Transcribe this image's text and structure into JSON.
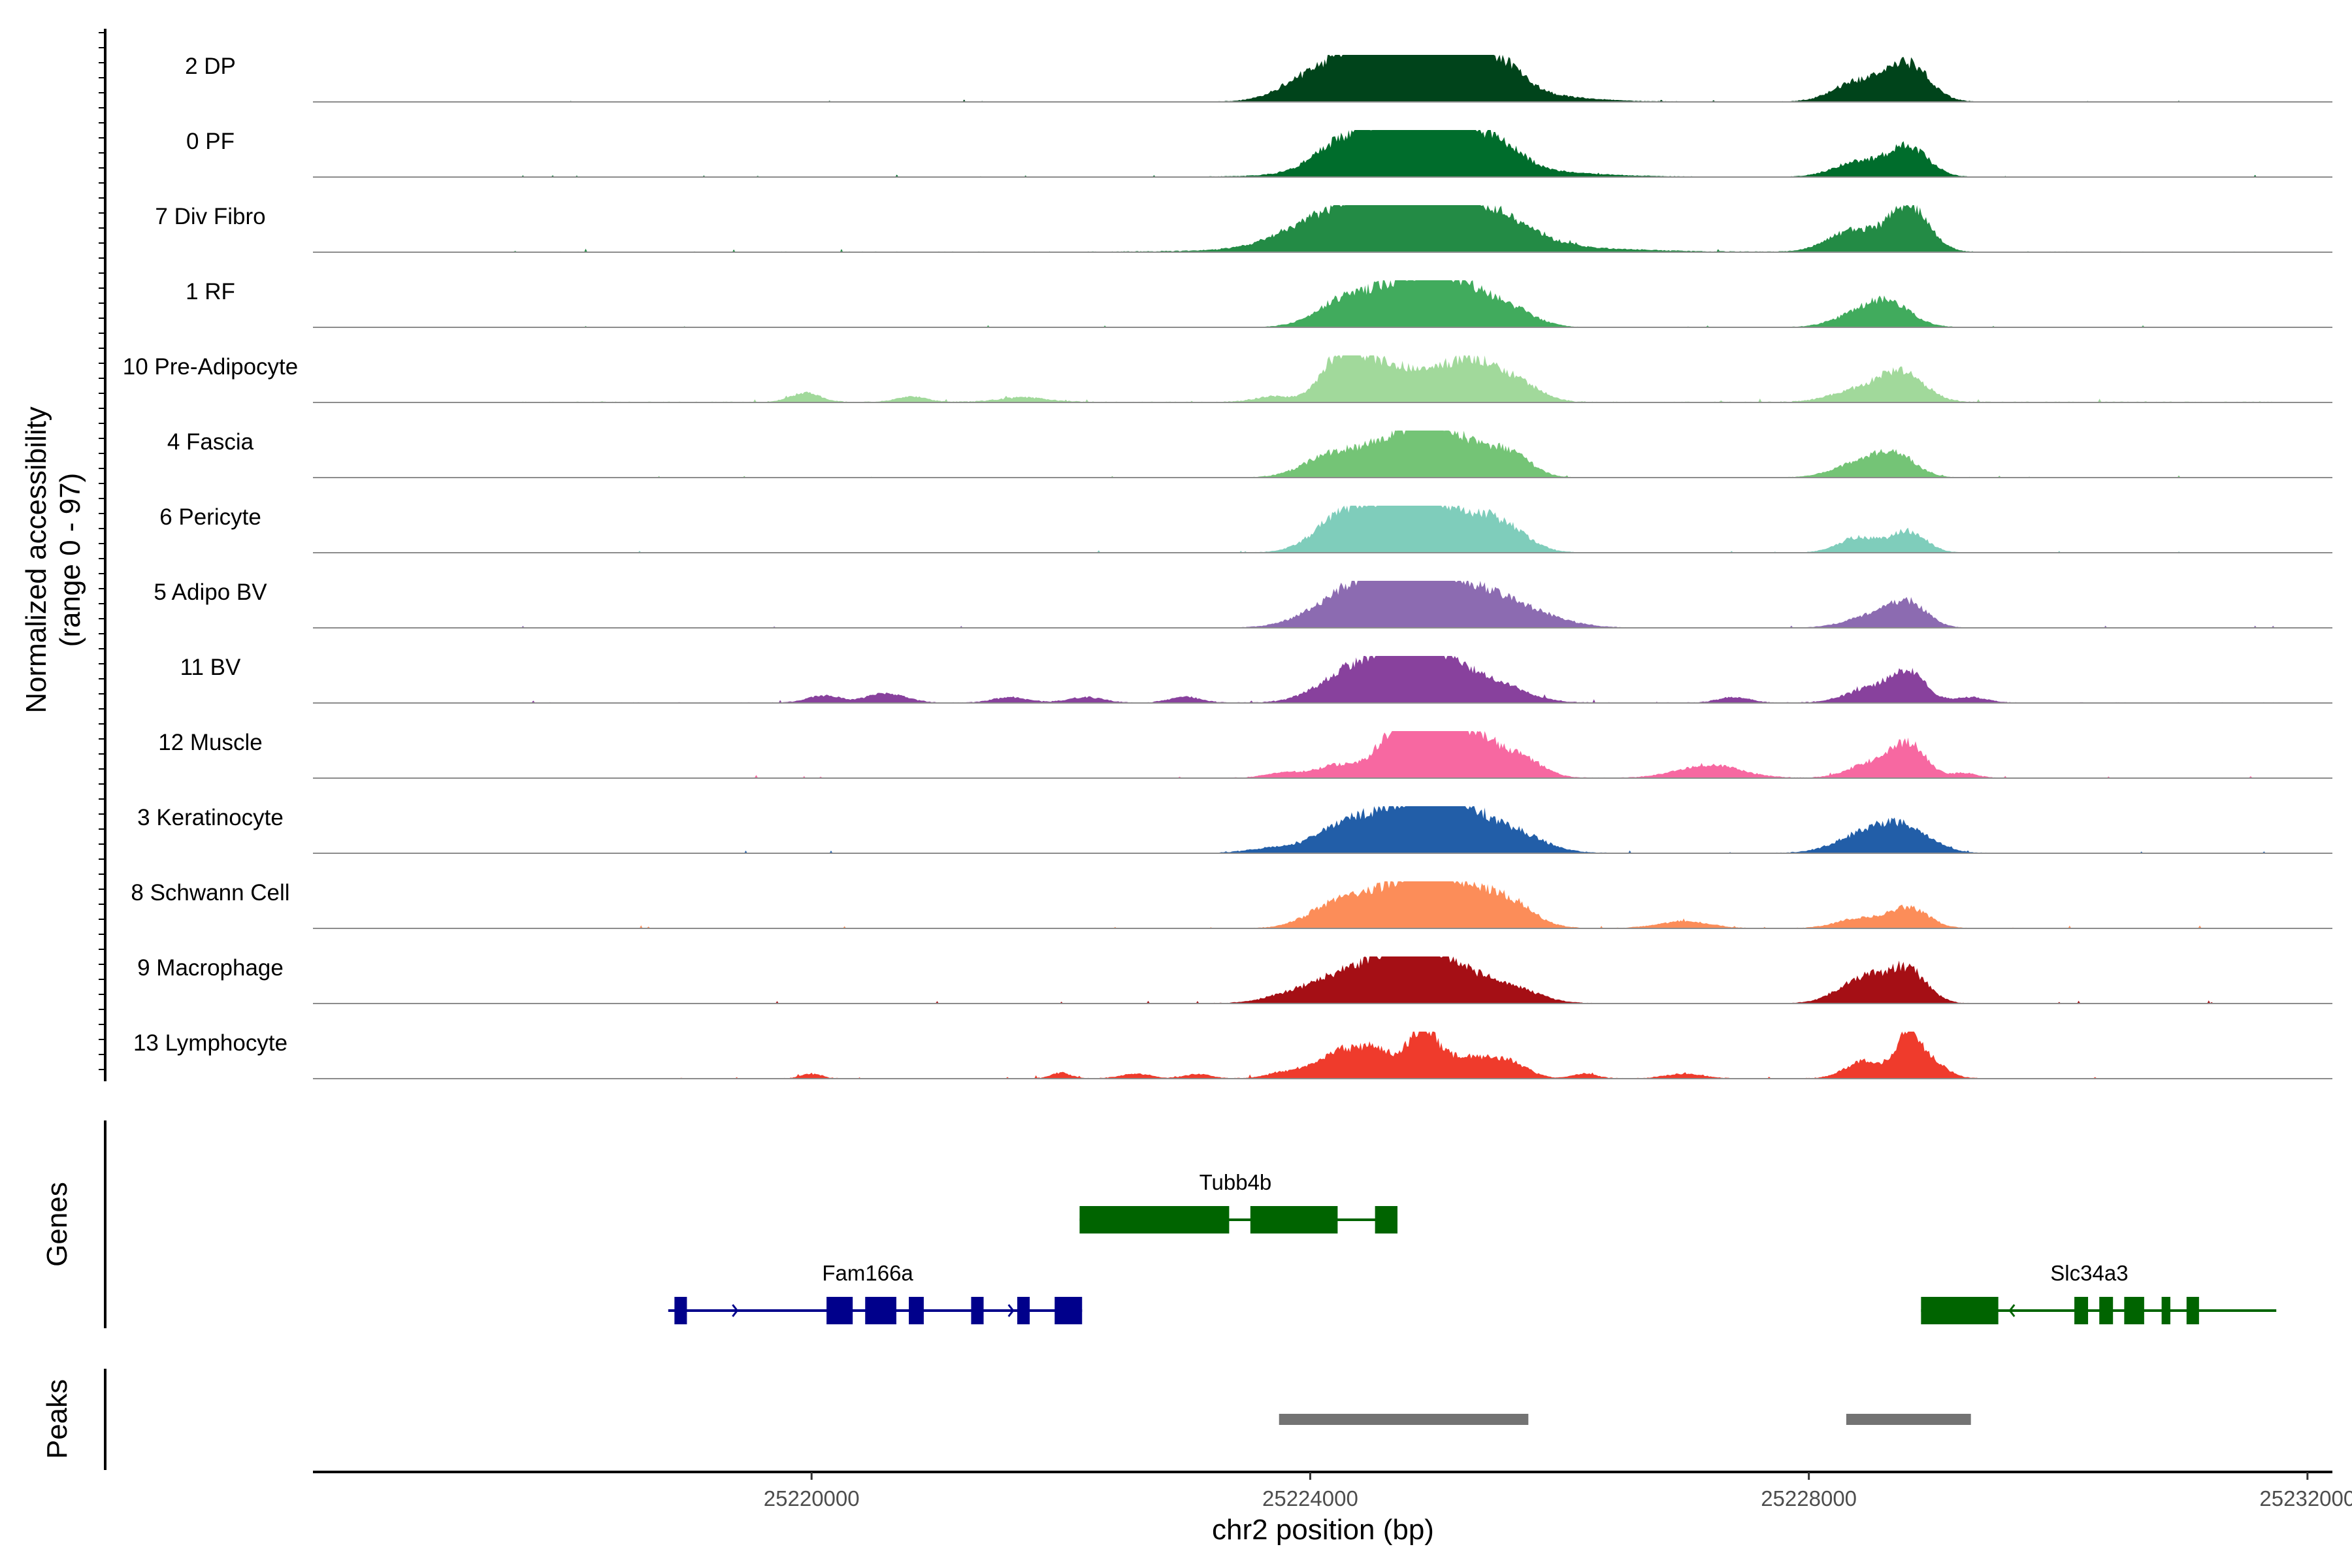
{
  "chart_data": {
    "type": "area",
    "ylabel": "Normalized accessibility",
    "ylabel_range": "(range 0 - 97)",
    "ylim": [
      0,
      97
    ],
    "xlabel": "chr2 position (bp)",
    "xlim": [
      25216000,
      25232200
    ],
    "x_ticks": [
      25220000,
      25224000,
      25228000,
      25232000
    ],
    "x_tick_labels": [
      "25220000",
      "25224000",
      "25228000",
      "25232000"
    ],
    "tracks": [
      {
        "name": "2 DP",
        "color": "#00441b",
        "noise": 1.0,
        "bumps": [
          [
            25223950,
            220,
            0.38
          ],
          [
            25224300,
            200,
            0.48
          ],
          [
            25224650,
            300,
            0.85
          ],
          [
            25225000,
            250,
            0.98
          ],
          [
            25225500,
            200,
            0.55
          ],
          [
            25225150,
            600,
            0.35
          ],
          [
            25228400,
            200,
            0.42
          ],
          [
            25228800,
            170,
            0.78
          ]
        ]
      },
      {
        "name": "0 PF",
        "color": "#006d2c",
        "noise": 0.9,
        "bumps": [
          [
            25224250,
            230,
            0.52
          ],
          [
            25224750,
            300,
            0.85
          ],
          [
            25225100,
            230,
            0.82
          ],
          [
            25225550,
            170,
            0.4
          ],
          [
            25225100,
            700,
            0.28
          ],
          [
            25228400,
            200,
            0.32
          ],
          [
            25228800,
            160,
            0.62
          ]
        ]
      },
      {
        "name": "7 Div Fibro",
        "color": "#238b45",
        "noise": 1.3,
        "bumps": [
          [
            25224000,
            300,
            0.35
          ],
          [
            25224500,
            350,
            0.68
          ],
          [
            25224800,
            250,
            0.95
          ],
          [
            25225150,
            300,
            0.72
          ],
          [
            25225600,
            250,
            0.32
          ],
          [
            25225000,
            900,
            0.25
          ],
          [
            25228350,
            200,
            0.45
          ],
          [
            25228800,
            160,
            0.98
          ]
        ]
      },
      {
        "name": "1 RF",
        "color": "#41ab5d",
        "noise": 0.8,
        "bumps": [
          [
            25224250,
            220,
            0.45
          ],
          [
            25224750,
            300,
            0.82
          ],
          [
            25225150,
            250,
            0.75
          ],
          [
            25225600,
            200,
            0.35
          ],
          [
            25228400,
            200,
            0.25
          ],
          [
            25228650,
            180,
            0.45
          ]
        ]
      },
      {
        "name": "10 Pre-Adipocyte",
        "color": "#a1d99b",
        "noise": 1.6,
        "bumps": [
          [
            25219950,
            120,
            0.2
          ],
          [
            25220800,
            120,
            0.12
          ],
          [
            25221700,
            200,
            0.1
          ],
          [
            25223700,
            150,
            0.12
          ],
          [
            25224250,
            160,
            1.0
          ],
          [
            25224550,
            150,
            0.55
          ],
          [
            25224950,
            250,
            0.72
          ],
          [
            25225300,
            150,
            0.5
          ],
          [
            25225600,
            200,
            0.52
          ],
          [
            25228400,
            220,
            0.25
          ],
          [
            25228750,
            180,
            0.6
          ]
        ]
      },
      {
        "name": "4 Fascia",
        "color": "#74c476",
        "noise": 0.8,
        "bumps": [
          [
            25224150,
            220,
            0.38
          ],
          [
            25224700,
            300,
            0.75
          ],
          [
            25225100,
            250,
            0.8
          ],
          [
            25225600,
            170,
            0.48
          ],
          [
            25228400,
            200,
            0.3
          ],
          [
            25228700,
            160,
            0.45
          ]
        ]
      },
      {
        "name": "6 Pericyte",
        "color": "#7fcdbb",
        "noise": 0.9,
        "bumps": [
          [
            25224250,
            220,
            0.68
          ],
          [
            25224650,
            250,
            0.82
          ],
          [
            25225100,
            280,
            0.85
          ],
          [
            25225550,
            200,
            0.45
          ],
          [
            25228400,
            160,
            0.32
          ],
          [
            25228800,
            140,
            0.45
          ]
        ]
      },
      {
        "name": "5 Adipo BV",
        "color": "#8c6bb1",
        "noise": 0.8,
        "bumps": [
          [
            25224300,
            300,
            0.55
          ],
          [
            25224800,
            350,
            0.95
          ],
          [
            25225250,
            400,
            0.55
          ],
          [
            25225700,
            300,
            0.2
          ],
          [
            25228500,
            200,
            0.25
          ],
          [
            25228800,
            150,
            0.5
          ]
        ]
      },
      {
        "name": "11 BV",
        "color": "#88419d",
        "noise": 1.3,
        "bumps": [
          [
            25220100,
            130,
            0.15
          ],
          [
            25220600,
            160,
            0.2
          ],
          [
            25221600,
            140,
            0.12
          ],
          [
            25222200,
            140,
            0.12
          ],
          [
            25223000,
            130,
            0.12
          ],
          [
            25224300,
            250,
            0.55
          ],
          [
            25224700,
            250,
            0.8
          ],
          [
            25225050,
            250,
            0.75
          ],
          [
            25225500,
            250,
            0.32
          ],
          [
            25227400,
            130,
            0.12
          ],
          [
            25228500,
            200,
            0.3
          ],
          [
            25228800,
            140,
            0.6
          ],
          [
            25229300,
            130,
            0.12
          ]
        ]
      },
      {
        "name": "12 Muscle",
        "color": "#f768a1",
        "noise": 1.2,
        "bumps": [
          [
            25223800,
            150,
            0.12
          ],
          [
            25224200,
            150,
            0.25
          ],
          [
            25224700,
            180,
            0.62
          ],
          [
            25225000,
            280,
            0.92
          ],
          [
            25225400,
            250,
            0.55
          ],
          [
            25225750,
            150,
            0.2
          ],
          [
            25227200,
            250,
            0.28
          ],
          [
            25228500,
            180,
            0.3
          ],
          [
            25228800,
            140,
            0.7
          ],
          [
            25229250,
            100,
            0.1
          ]
        ]
      },
      {
        "name": "3 Keratinocyte",
        "color": "#225ea8",
        "noise": 1.0,
        "bumps": [
          [
            25223700,
            200,
            0.1
          ],
          [
            25224300,
            250,
            0.55
          ],
          [
            25224800,
            300,
            0.72
          ],
          [
            25225100,
            250,
            0.85
          ],
          [
            25225600,
            250,
            0.45
          ],
          [
            25228500,
            250,
            0.45
          ],
          [
            25228800,
            200,
            0.38
          ]
        ]
      },
      {
        "name": "8 Schwann Cell",
        "color": "#fc8d59",
        "noise": 1.1,
        "bumps": [
          [
            25224200,
            220,
            0.45
          ],
          [
            25224750,
            300,
            0.82
          ],
          [
            25225150,
            280,
            0.75
          ],
          [
            25225600,
            200,
            0.45
          ],
          [
            25227000,
            200,
            0.15
          ],
          [
            25228400,
            180,
            0.2
          ],
          [
            25228800,
            160,
            0.42
          ]
        ]
      },
      {
        "name": "9 Macrophage",
        "color": "#a50f15",
        "noise": 1.1,
        "bumps": [
          [
            25223800,
            200,
            0.12
          ],
          [
            25224200,
            250,
            0.45
          ],
          [
            25224600,
            250,
            0.62
          ],
          [
            25224950,
            250,
            0.95
          ],
          [
            25225400,
            250,
            0.35
          ],
          [
            25225700,
            200,
            0.15
          ],
          [
            25228450,
            200,
            0.55
          ],
          [
            25228800,
            150,
            0.65
          ]
        ]
      },
      {
        "name": "13 Lymphocyte",
        "color": "#ef3b2c",
        "noise": 1.2,
        "bumps": [
          [
            25220000,
            80,
            0.1
          ],
          [
            25222000,
            80,
            0.12
          ],
          [
            25222600,
            120,
            0.1
          ],
          [
            25223100,
            100,
            0.1
          ],
          [
            25223800,
            150,
            0.12
          ],
          [
            25224250,
            200,
            0.55
          ],
          [
            25224550,
            150,
            0.45
          ],
          [
            25224900,
            120,
            0.95
          ],
          [
            25225250,
            200,
            0.45
          ],
          [
            25225600,
            150,
            0.3
          ],
          [
            25226200,
            100,
            0.1
          ],
          [
            25227000,
            150,
            0.1
          ],
          [
            25228450,
            150,
            0.38
          ],
          [
            25228800,
            100,
            0.95
          ],
          [
            25229000,
            120,
            0.3
          ]
        ]
      }
    ],
    "genes_panel_title": "Genes",
    "genes": [
      {
        "name": "Tubb4b",
        "strand": "+",
        "color": "#006400",
        "row": 0,
        "start": 25222150,
        "end": 25224700,
        "exons": [
          [
            25222150,
            25223350
          ],
          [
            25223520,
            25224220
          ],
          [
            25224520,
            25224700
          ]
        ],
        "label_pos": 25223400
      },
      {
        "name": "Fam166a",
        "strand": "+",
        "color": "#00008b",
        "row": 1,
        "start": 25218850,
        "end": 25222170,
        "exons": [
          [
            25218900,
            25219000
          ],
          [
            25220120,
            25220330
          ],
          [
            25220430,
            25220680
          ],
          [
            25220780,
            25220900
          ],
          [
            25221280,
            25221380
          ],
          [
            25221650,
            25221750
          ],
          [
            25221950,
            25222170
          ]
        ],
        "label_pos": 25220450
      },
      {
        "name": "Slc34a3",
        "strand": "-",
        "color": "#006400",
        "row": 1,
        "start": 25228900,
        "end": 25231750,
        "exons": [
          [
            25228900,
            25229520
          ],
          [
            25230130,
            25230240
          ],
          [
            25230330,
            25230440
          ],
          [
            25230530,
            25230690
          ],
          [
            25230830,
            25230900
          ],
          [
            25231030,
            25231130
          ]
        ],
        "label_pos": 25230250
      }
    ],
    "peaks_panel_title": "Peaks",
    "peaks": [
      [
        25223750,
        25225750
      ],
      [
        25228300,
        25229300
      ]
    ]
  }
}
